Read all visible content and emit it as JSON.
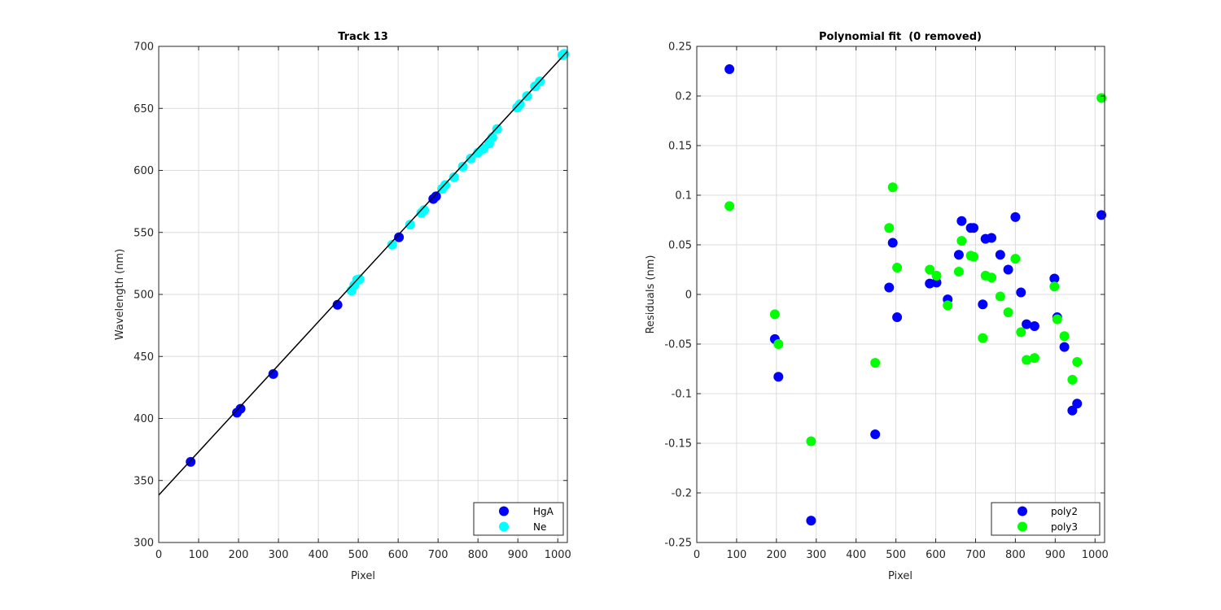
{
  "chart_data": [
    {
      "type": "scatter",
      "title": "Track 13",
      "xlabel": "Pixel",
      "ylabel": "Wavelength (nm)",
      "xlim": [
        0,
        1024
      ],
      "ylim": [
        300,
        700
      ],
      "xticks": [
        0,
        100,
        200,
        300,
        400,
        500,
        600,
        700,
        800,
        900,
        1000
      ],
      "yticks": [
        300,
        350,
        400,
        450,
        500,
        550,
        600,
        650,
        700
      ],
      "grid": true,
      "legend_position": "bottom-right",
      "series": [
        {
          "name": "HgA",
          "color": "#0000ff",
          "points": [
            [
              80,
              365.0
            ],
            [
              196,
              404.7
            ],
            [
              205,
              407.8
            ],
            [
              287,
              435.8
            ],
            [
              448,
              491.6
            ],
            [
              602,
              546.1
            ],
            [
              688,
              577.0
            ],
            [
              695,
              579.1
            ]
          ]
        },
        {
          "name": "Ne",
          "color": "#00ffff",
          "points": [
            [
              483,
              503.1
            ],
            [
              490,
              507.4
            ],
            [
              497,
              511.7
            ],
            [
              503,
              512.2
            ],
            [
              585,
              540.1
            ],
            [
              630,
              556.3
            ],
            [
              658,
              565.7
            ],
            [
              665,
              568.0
            ],
            [
              710,
              585.2
            ],
            [
              718,
              588.2
            ],
            [
              740,
              594.5
            ],
            [
              762,
              603.0
            ],
            [
              782,
              609.6
            ],
            [
              800,
              614.3
            ],
            [
              814,
              617.5
            ],
            [
              828,
              621.7
            ],
            [
              836,
              626.6
            ],
            [
              848,
              633.4
            ],
            [
              898,
              650.7
            ],
            [
              905,
              653.3
            ],
            [
              923,
              659.9
            ],
            [
              943,
              667.8
            ],
            [
              955,
              671.7
            ],
            [
              1012,
              692.9
            ],
            [
              1016,
              693.9
            ]
          ]
        },
        {
          "name": "",
          "mode": "line",
          "color": "#000000",
          "points": [
            [
              0,
              338.2
            ],
            [
              1024,
              696.0
            ]
          ]
        }
      ]
    },
    {
      "type": "scatter",
      "title": "Polynomial fit  (0 removed)",
      "xlabel": "Pixel",
      "ylabel": "Residuals (nm)",
      "xlim": [
        0,
        1024
      ],
      "ylim": [
        -0.25,
        0.25
      ],
      "xticks": [
        0,
        100,
        200,
        300,
        400,
        500,
        600,
        700,
        800,
        900,
        1000
      ],
      "xtick_labels": [
        "0",
        "100",
        "200",
        "300",
        "400",
        "500",
        "600",
        "700",
        "800",
        "900",
        "1000"
      ],
      "yticks": [
        -0.25,
        -0.2,
        -0.15,
        -0.1,
        -0.05,
        0,
        0.05,
        0.1,
        0.15,
        0.2,
        0.25
      ],
      "ytick_labels": [
        "-0.25",
        "-0.2",
        "-0.15",
        "-0.1",
        "-0.05",
        "0",
        "0.05",
        "0.1",
        "0.15",
        "0.2",
        "0.25"
      ],
      "grid": true,
      "legend_position": "bottom-right",
      "series": [
        {
          "name": "poly2",
          "color": "#0000ff",
          "points": [
            [
              82,
              0.227
            ],
            [
              196,
              -0.045
            ],
            [
              205,
              -0.083
            ],
            [
              287,
              -0.228
            ],
            [
              448,
              -0.141
            ],
            [
              483,
              0.007
            ],
            [
              492,
              0.052
            ],
            [
              503,
              -0.023
            ],
            [
              585,
              0.011
            ],
            [
              602,
              0.012
            ],
            [
              630,
              -0.005
            ],
            [
              658,
              0.04
            ],
            [
              665,
              0.074
            ],
            [
              688,
              0.067
            ],
            [
              695,
              0.067
            ],
            [
              718,
              -0.01
            ],
            [
              725,
              0.056
            ],
            [
              740,
              0.057
            ],
            [
              762,
              0.04
            ],
            [
              782,
              0.025
            ],
            [
              800,
              0.078
            ],
            [
              814,
              0.002
            ],
            [
              828,
              -0.03
            ],
            [
              848,
              -0.032
            ],
            [
              898,
              0.016
            ],
            [
              905,
              -0.023
            ],
            [
              923,
              -0.053
            ],
            [
              943,
              -0.117
            ],
            [
              955,
              -0.11
            ],
            [
              1016,
              0.08
            ]
          ]
        },
        {
          "name": "poly3",
          "color": "#00ff00",
          "points": [
            [
              82,
              0.089
            ],
            [
              196,
              -0.02
            ],
            [
              205,
              -0.05
            ],
            [
              287,
              -0.148
            ],
            [
              448,
              -0.069
            ],
            [
              483,
              0.067
            ],
            [
              492,
              0.108
            ],
            [
              503,
              0.027
            ],
            [
              585,
              0.025
            ],
            [
              602,
              0.019
            ],
            [
              630,
              -0.011
            ],
            [
              658,
              0.023
            ],
            [
              665,
              0.054
            ],
            [
              688,
              0.039
            ],
            [
              695,
              0.038
            ],
            [
              718,
              -0.044
            ],
            [
              725,
              0.019
            ],
            [
              740,
              0.017
            ],
            [
              762,
              -0.002
            ],
            [
              782,
              -0.018
            ],
            [
              800,
              0.036
            ],
            [
              814,
              -0.038
            ],
            [
              828,
              -0.066
            ],
            [
              848,
              -0.064
            ],
            [
              898,
              0.008
            ],
            [
              905,
              -0.025
            ],
            [
              923,
              -0.042
            ],
            [
              943,
              -0.086
            ],
            [
              955,
              -0.068
            ],
            [
              1016,
              0.198
            ]
          ]
        }
      ]
    }
  ]
}
